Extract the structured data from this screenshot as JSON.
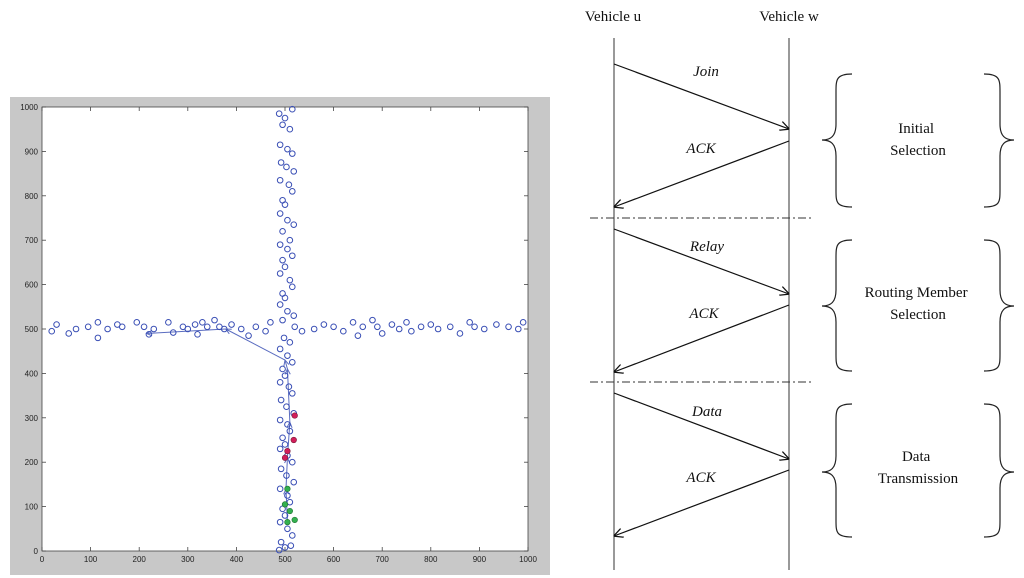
{
  "scatter": {
    "chart_data": {
      "type": "scatter",
      "xlim": [
        0,
        1000
      ],
      "ylim": [
        0,
        1000
      ],
      "xticks": [
        "0",
        "100",
        "200",
        "300",
        "400",
        "500",
        "600",
        "700",
        "800",
        "900",
        "1000"
      ],
      "yticks": [
        "0",
        "100",
        "200",
        "300",
        "400",
        "500",
        "600",
        "700",
        "800",
        "900",
        "1000"
      ],
      "grid": false,
      "colors": {
        "vehicle": "#3a4fb5",
        "red": "#d21e5a",
        "green": "#33b04f",
        "route": "#5a6cc0"
      },
      "vehicles": [
        [
          20,
          495
        ],
        [
          30,
          510
        ],
        [
          55,
          490
        ],
        [
          70,
          500
        ],
        [
          95,
          505
        ],
        [
          115,
          515
        ],
        [
          115,
          480
        ],
        [
          135,
          500
        ],
        [
          155,
          510
        ],
        [
          165,
          505
        ],
        [
          195,
          515
        ],
        [
          210,
          505
        ],
        [
          220,
          488
        ],
        [
          230,
          500
        ],
        [
          260,
          515
        ],
        [
          270,
          492
        ],
        [
          290,
          505
        ],
        [
          300,
          500
        ],
        [
          315,
          510
        ],
        [
          320,
          488
        ],
        [
          330,
          515
        ],
        [
          340,
          505
        ],
        [
          355,
          520
        ],
        [
          365,
          505
        ],
        [
          375,
          500
        ],
        [
          390,
          510
        ],
        [
          410,
          500
        ],
        [
          425,
          485
        ],
        [
          440,
          505
        ],
        [
          460,
          495
        ],
        [
          470,
          515
        ],
        [
          520,
          505
        ],
        [
          535,
          495
        ],
        [
          560,
          500
        ],
        [
          580,
          510
        ],
        [
          600,
          505
        ],
        [
          620,
          495
        ],
        [
          640,
          515
        ],
        [
          650,
          485
        ],
        [
          660,
          505
        ],
        [
          680,
          520
        ],
        [
          690,
          505
        ],
        [
          700,
          490
        ],
        [
          720,
          510
        ],
        [
          735,
          500
        ],
        [
          750,
          515
        ],
        [
          760,
          495
        ],
        [
          780,
          505
        ],
        [
          800,
          510
        ],
        [
          815,
          500
        ],
        [
          840,
          505
        ],
        [
          860,
          490
        ],
        [
          880,
          515
        ],
        [
          890,
          505
        ],
        [
          910,
          500
        ],
        [
          935,
          510
        ],
        [
          960,
          505
        ],
        [
          980,
          500
        ],
        [
          990,
          515
        ],
        [
          488,
          985
        ],
        [
          500,
          975
        ],
        [
          515,
          995
        ],
        [
          495,
          960
        ],
        [
          510,
          950
        ],
        [
          490,
          915
        ],
        [
          505,
          905
        ],
        [
          515,
          895
        ],
        [
          492,
          875
        ],
        [
          503,
          865
        ],
        [
          518,
          855
        ],
        [
          490,
          835
        ],
        [
          508,
          825
        ],
        [
          515,
          810
        ],
        [
          495,
          790
        ],
        [
          500,
          780
        ],
        [
          490,
          760
        ],
        [
          505,
          745
        ],
        [
          518,
          735
        ],
        [
          495,
          720
        ],
        [
          510,
          700
        ],
        [
          490,
          690
        ],
        [
          505,
          680
        ],
        [
          515,
          665
        ],
        [
          495,
          655
        ],
        [
          500,
          640
        ],
        [
          490,
          625
        ],
        [
          510,
          610
        ],
        [
          515,
          595
        ],
        [
          495,
          580
        ],
        [
          500,
          570
        ],
        [
          490,
          555
        ],
        [
          505,
          540
        ],
        [
          518,
          530
        ],
        [
          495,
          520
        ],
        [
          498,
          480
        ],
        [
          510,
          470
        ],
        [
          490,
          455
        ],
        [
          505,
          440
        ],
        [
          515,
          425
        ],
        [
          495,
          410
        ],
        [
          500,
          395
        ],
        [
          490,
          380
        ],
        [
          508,
          370
        ],
        [
          515,
          355
        ],
        [
          492,
          340
        ],
        [
          503,
          325
        ],
        [
          518,
          310
        ],
        [
          490,
          295
        ],
        [
          505,
          285
        ],
        [
          510,
          270
        ],
        [
          495,
          255
        ],
        [
          500,
          240
        ],
        [
          490,
          230
        ],
        [
          505,
          215
        ],
        [
          515,
          200
        ],
        [
          492,
          185
        ],
        [
          503,
          170
        ],
        [
          518,
          155
        ],
        [
          490,
          140
        ],
        [
          505,
          125
        ],
        [
          510,
          110
        ],
        [
          495,
          95
        ],
        [
          500,
          80
        ],
        [
          490,
          65
        ],
        [
          505,
          50
        ],
        [
          515,
          35
        ],
        [
          492,
          20
        ],
        [
          500,
          8
        ],
        [
          488,
          2
        ],
        [
          512,
          12
        ]
      ],
      "red_vehicles": [
        [
          520,
          305
        ],
        [
          518,
          250
        ],
        [
          505,
          225
        ],
        [
          500,
          210
        ]
      ],
      "green_vehicles": [
        [
          505,
          140
        ],
        [
          500,
          105
        ],
        [
          510,
          90
        ],
        [
          520,
          70
        ],
        [
          505,
          65
        ]
      ],
      "route": [
        [
          505,
          65
        ],
        [
          502,
          140
        ],
        [
          505,
          210
        ],
        [
          510,
          290
        ],
        [
          505,
          410
        ],
        [
          500,
          430
        ],
        [
          378,
          500
        ],
        [
          215,
          490
        ]
      ]
    }
  },
  "sequence": {
    "actor_u": "Vehicle u",
    "actor_w": "Vehicle w",
    "messages": [
      {
        "label": "Join",
        "direction": "u-to-w"
      },
      {
        "label": "ACK",
        "direction": "w-to-u"
      },
      {
        "label": "Relay",
        "direction": "u-to-w"
      },
      {
        "label": "ACK",
        "direction": "w-to-u"
      },
      {
        "label": "Data",
        "direction": "u-to-w"
      },
      {
        "label": "ACK",
        "direction": "w-to-u"
      }
    ],
    "phases": [
      {
        "line1": "Initial",
        "line2": "Selection"
      },
      {
        "line1": "Routing Member",
        "line2": "Selection"
      },
      {
        "line1": "Data",
        "line2": "Transmission"
      }
    ]
  }
}
